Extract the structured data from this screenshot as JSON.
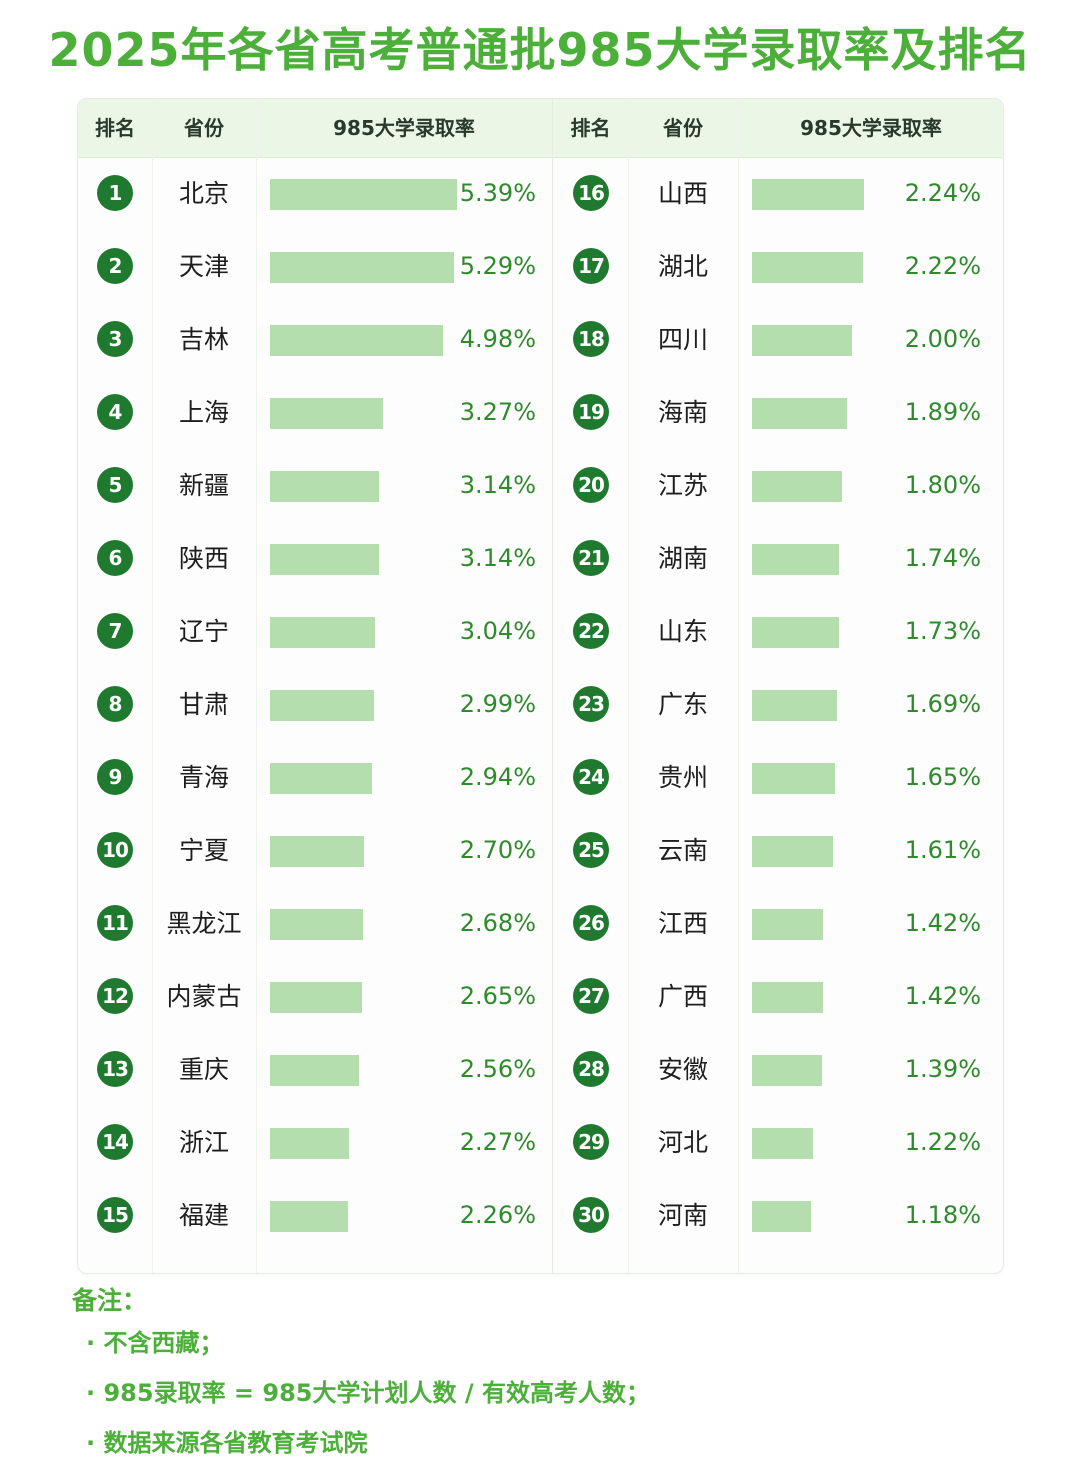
{
  "title": "2025年各省高考普通批985大学录取率及排名",
  "headers": {
    "rank": "排名",
    "province": "省份",
    "rate": "985大学录取率"
  },
  "colors": {
    "accent": "#4caf3a",
    "badge": "#1f7a2f",
    "bar": "#b5deae",
    "header_bg": "#eaf6e6"
  },
  "chart_data": {
    "type": "bar",
    "title": "2025年各省高考普通批985大学录取率及排名",
    "unit": "%",
    "left": [
      {
        "rank": "1",
        "province": "北京",
        "value": 5.39,
        "label": "5.39%"
      },
      {
        "rank": "2",
        "province": "天津",
        "value": 5.29,
        "label": "5.29%"
      },
      {
        "rank": "3",
        "province": "吉林",
        "value": 4.98,
        "label": "4.98%"
      },
      {
        "rank": "4",
        "province": "上海",
        "value": 3.27,
        "label": "3.27%"
      },
      {
        "rank": "5",
        "province": "新疆",
        "value": 3.14,
        "label": "3.14%"
      },
      {
        "rank": "6",
        "province": "陕西",
        "value": 3.14,
        "label": "3.14%"
      },
      {
        "rank": "7",
        "province": "辽宁",
        "value": 3.04,
        "label": "3.04%"
      },
      {
        "rank": "8",
        "province": "甘肃",
        "value": 2.99,
        "label": "2.99%"
      },
      {
        "rank": "9",
        "province": "青海",
        "value": 2.94,
        "label": "2.94%"
      },
      {
        "rank": "10",
        "province": "宁夏",
        "value": 2.7,
        "label": "2.70%"
      },
      {
        "rank": "11",
        "province": "黑龙江",
        "value": 2.68,
        "label": "2.68%"
      },
      {
        "rank": "12",
        "province": "内蒙古",
        "value": 2.65,
        "label": "2.65%"
      },
      {
        "rank": "13",
        "province": "重庆",
        "value": 2.56,
        "label": "2.56%"
      },
      {
        "rank": "14",
        "province": "浙江",
        "value": 2.27,
        "label": "2.27%"
      },
      {
        "rank": "15",
        "province": "福建",
        "value": 2.26,
        "label": "2.26%"
      }
    ],
    "right": [
      {
        "rank": "16",
        "province": "山西",
        "value": 2.24,
        "label": "2.24%"
      },
      {
        "rank": "17",
        "province": "湖北",
        "value": 2.22,
        "label": "2.22%"
      },
      {
        "rank": "18",
        "province": "四川",
        "value": 2.0,
        "label": "2.00%"
      },
      {
        "rank": "19",
        "province": "海南",
        "value": 1.89,
        "label": "1.89%"
      },
      {
        "rank": "20",
        "province": "江苏",
        "value": 1.8,
        "label": "1.80%"
      },
      {
        "rank": "21",
        "province": "湖南",
        "value": 1.74,
        "label": "1.74%"
      },
      {
        "rank": "22",
        "province": "山东",
        "value": 1.73,
        "label": "1.73%"
      },
      {
        "rank": "23",
        "province": "广东",
        "value": 1.69,
        "label": "1.69%"
      },
      {
        "rank": "24",
        "province": "贵州",
        "value": 1.65,
        "label": "1.65%"
      },
      {
        "rank": "25",
        "province": "云南",
        "value": 1.61,
        "label": "1.61%"
      },
      {
        "rank": "26",
        "province": "江西",
        "value": 1.42,
        "label": "1.42%"
      },
      {
        "rank": "27",
        "province": "广西",
        "value": 1.42,
        "label": "1.42%"
      },
      {
        "rank": "28",
        "province": "安徽",
        "value": 1.39,
        "label": "1.39%"
      },
      {
        "rank": "29",
        "province": "河北",
        "value": 1.22,
        "label": "1.22%"
      },
      {
        "rank": "30",
        "province": "河南",
        "value": 1.18,
        "label": "1.18%"
      }
    ]
  },
  "notes": {
    "title": "备注：",
    "items": [
      "· 不含西藏；",
      "· 985录取率 = 985大学计划人数 / 有效高考人数；",
      "· 数据来源各省教育考试院"
    ]
  }
}
